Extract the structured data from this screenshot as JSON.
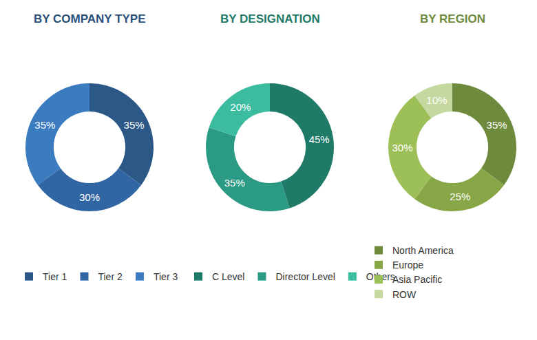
{
  "chart_data": [
    {
      "type": "donut",
      "title": "BY COMPANY TYPE",
      "categories": [
        "Tier 1",
        "Tier 2",
        "Tier 3"
      ],
      "values": [
        35,
        30,
        35
      ],
      "value_labels": [
        "35%",
        "30%",
        "35%"
      ],
      "colors": [
        "#2c5887",
        "#2f66a3",
        "#3b7cc0"
      ],
      "data_labels": true,
      "legend": "bottom"
    },
    {
      "type": "donut",
      "title": "BY DESIGNATION",
      "categories": [
        "C Level",
        "Director Level",
        "Others"
      ],
      "values": [
        45,
        35,
        20
      ],
      "value_labels": [
        "45%",
        "35%",
        "20%"
      ],
      "colors": [
        "#1f7a68",
        "#2a9a84",
        "#3cbc9f"
      ],
      "data_labels": true,
      "legend": "bottom"
    },
    {
      "type": "donut",
      "title": "BY REGION",
      "categories": [
        "North America",
        "Europe",
        "Asia Pacific",
        "ROW"
      ],
      "values": [
        35,
        25,
        30,
        10
      ],
      "value_labels": [
        "35%",
        "25%",
        "30%",
        "10%"
      ],
      "colors": [
        "#6e8b3d",
        "#87a646",
        "#9dbf57",
        "#c4d8a0"
      ],
      "data_labels": true,
      "legend": "bottom"
    }
  ]
}
